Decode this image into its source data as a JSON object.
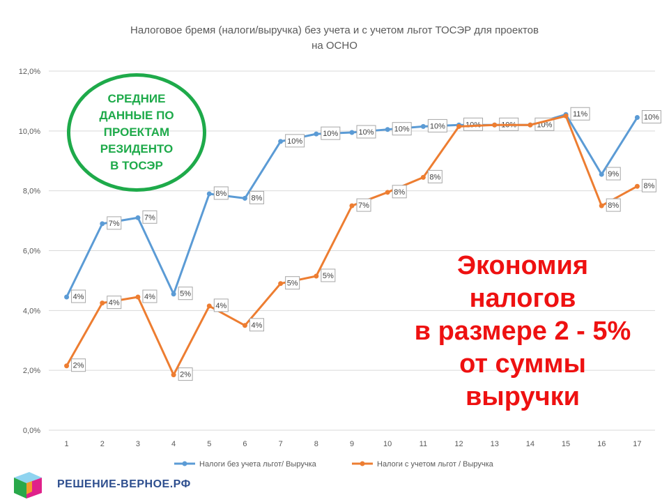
{
  "chart_data": {
    "type": "line",
    "title": "Налоговое бремя (налоги/выручка) без учета и с учетом льгот ТОСЭР для проектов на ОСНО",
    "title_lines": [
      "Налоговое бремя (налоги/выручка) без учета и с учетом льгот ТОСЭР для проектов",
      "на ОСНО"
    ],
    "categories": [
      "1",
      "2",
      "3",
      "4",
      "5",
      "6",
      "7",
      "8",
      "9",
      "10",
      "11",
      "12",
      "13",
      "14",
      "15",
      "16",
      "17"
    ],
    "ylim": [
      0,
      12
    ],
    "y_ticks": [
      "0,0%",
      "2,0%",
      "4,0%",
      "6,0%",
      "8,0%",
      "10,0%",
      "12,0%"
    ],
    "grid": true,
    "legend_position": "bottom",
    "series": [
      {
        "name": "Налоги без учета льгот/ Выручка",
        "color": "#5b9bd5",
        "values": [
          4.45,
          6.9,
          7.1,
          4.55,
          7.9,
          7.75,
          9.65,
          9.9,
          9.95,
          10.05,
          10.15,
          10.2,
          10.2,
          10.2,
          10.55,
          8.55,
          10.45
        ],
        "labels": [
          "4%",
          "7%",
          "7%",
          "5%",
          "8%",
          "8%",
          "10%",
          "10%",
          "10%",
          "10%",
          "10%",
          "10%",
          "10%",
          "10%",
          "11%",
          "9%",
          "10%"
        ]
      },
      {
        "name": "Налоги с учетом льгот / Выручка",
        "color": "#ed7d31",
        "values": [
          2.15,
          4.25,
          4.45,
          1.85,
          4.15,
          3.5,
          4.9,
          5.15,
          7.5,
          7.95,
          8.45,
          10.15,
          10.2,
          10.2,
          10.5,
          7.5,
          8.15
        ],
        "labels": [
          "2%",
          "4%",
          "4%",
          "2%",
          "4%",
          "4%",
          "5%",
          "5%",
          "7%",
          "8%",
          "8%",
          "",
          "",
          "",
          "",
          "8%",
          "8%"
        ]
      }
    ]
  },
  "badge": {
    "text": "СРЕДНИЕ\nДАННЫЕ ПО\nПРОЕКТАМ\nРЕЗИДЕНТО\nВ ТОСЭР"
  },
  "economy": {
    "text": "Экономия\nналогов\nв размере 2 - 5%\nот суммы\nвыручки"
  },
  "brand": {
    "text": "РЕШЕНИЕ-ВЕРНОЕ.РФ"
  }
}
